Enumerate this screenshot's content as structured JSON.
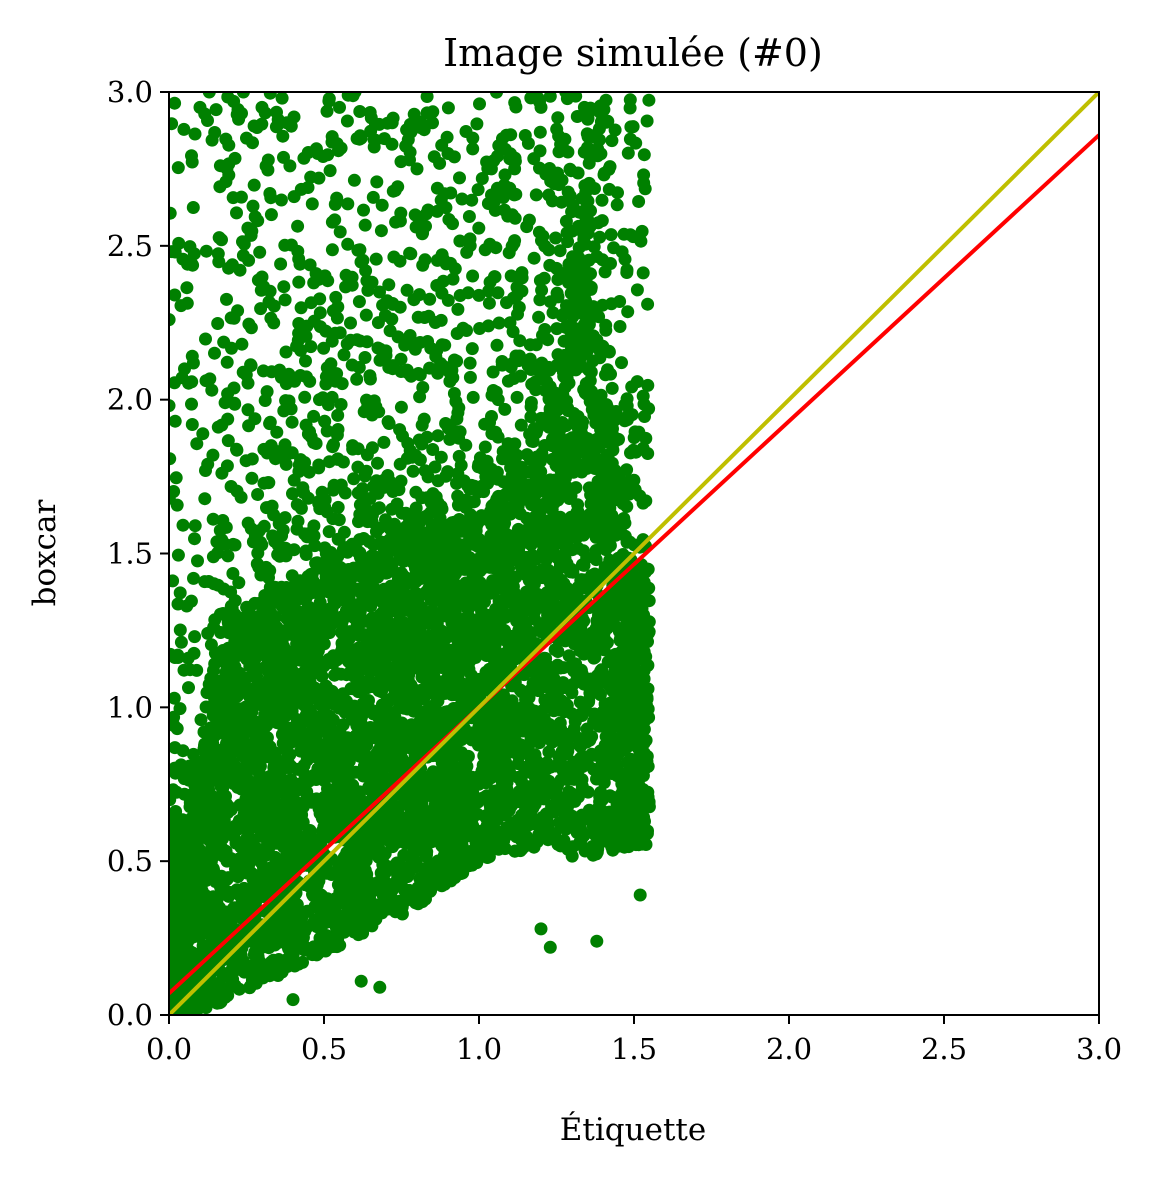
{
  "chart_data": {
    "type": "scatter",
    "title": "Image simulée (#0)",
    "xlabel": "Étiquette",
    "ylabel": "boxcar",
    "xlim": [
      0.0,
      3.0
    ],
    "ylim": [
      0.0,
      3.0
    ],
    "xticks": [
      "0.0",
      "0.5",
      "1.0",
      "1.5",
      "2.0",
      "2.5",
      "3.0"
    ],
    "yticks": [
      "0.0",
      "0.5",
      "1.0",
      "1.5",
      "2.0",
      "2.5",
      "3.0"
    ],
    "grid": false,
    "legend": "none",
    "colors": {
      "points": "#008000",
      "fit_line": "#ff0000",
      "identity_line": "#bfbf00"
    },
    "series": [
      {
        "type": "scatter",
        "x_range": [
          0.0,
          1.55
        ],
        "dense_core": [
          {
            "x": 0.05,
            "y_low": 0.0,
            "y_high": 0.6
          },
          {
            "x": 0.2,
            "y_low": 0.05,
            "y_high": 1.3
          },
          {
            "x": 0.4,
            "y_low": 0.15,
            "y_high": 1.4
          },
          {
            "x": 0.6,
            "y_low": 0.25,
            "y_high": 1.5
          },
          {
            "x": 0.8,
            "y_low": 0.35,
            "y_high": 1.55
          },
          {
            "x": 1.0,
            "y_low": 0.5,
            "y_high": 1.6
          },
          {
            "x": 1.2,
            "y_low": 0.55,
            "y_high": 1.8
          },
          {
            "x": 1.35,
            "y_low": 0.5,
            "y_high": 2.4
          },
          {
            "x": 1.5,
            "y_low": 0.55,
            "y_high": 1.4
          }
        ],
        "outliers": [
          [
            0.1,
            2.95
          ],
          [
            0.13,
            3.0
          ],
          [
            0.24,
            3.0
          ],
          [
            0.25,
            2.85
          ],
          [
            0.3,
            2.95
          ],
          [
            0.38,
            2.9
          ],
          [
            0.48,
            2.8
          ],
          [
            0.55,
            2.95
          ],
          [
            0.6,
            3.0
          ],
          [
            0.62,
            2.85
          ],
          [
            0.72,
            2.9
          ],
          [
            0.8,
            2.75
          ],
          [
            0.85,
            2.9
          ],
          [
            0.9,
            2.8
          ],
          [
            0.98,
            2.85
          ],
          [
            1.04,
            2.75
          ],
          [
            1.1,
            2.6
          ],
          [
            1.2,
            2.95
          ],
          [
            1.28,
            3.0
          ],
          [
            1.34,
            2.95
          ],
          [
            0.02,
            2.48
          ],
          [
            0.05,
            2.1
          ],
          [
            0.02,
            1.93
          ],
          [
            1.1,
            2.25
          ],
          [
            1.13,
            2.3
          ],
          [
            1.17,
            2.05
          ],
          [
            1.05,
            2.4
          ],
          [
            0.4,
            0.05
          ],
          [
            0.68,
            0.09
          ],
          [
            0.62,
            0.11
          ],
          [
            1.23,
            0.22
          ],
          [
            1.38,
            0.24
          ],
          [
            1.2,
            0.28
          ],
          [
            1.52,
            0.39
          ]
        ]
      },
      {
        "type": "line",
        "role": "fit",
        "x": [
          0.0,
          3.0
        ],
        "y": [
          0.07,
          2.86
        ]
      },
      {
        "type": "line",
        "role": "identity",
        "x": [
          0.0,
          3.0
        ],
        "y": [
          0.0,
          3.0
        ]
      }
    ]
  }
}
